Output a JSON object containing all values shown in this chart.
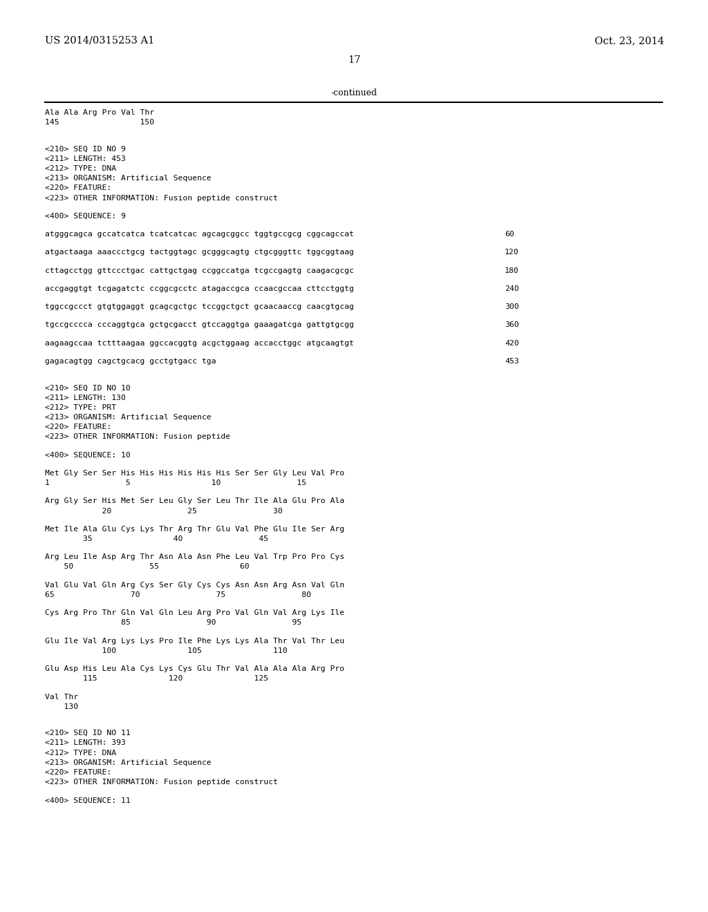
{
  "bg_color": "#ffffff",
  "header_left": "US 2014/0315253 A1",
  "header_right": "Oct. 23, 2014",
  "page_number": "17",
  "continued": "-continued",
  "content": [
    {
      "type": "seq",
      "text": "Ala Ala Arg Pro Val Thr",
      "indent": 0
    },
    {
      "type": "seq",
      "text": "145                 150",
      "indent": 0
    },
    {
      "type": "blank"
    },
    {
      "type": "blank"
    },
    {
      "type": "meta",
      "text": "<210> SEQ ID NO 9"
    },
    {
      "type": "meta",
      "text": "<211> LENGTH: 453"
    },
    {
      "type": "meta",
      "text": "<212> TYPE: DNA"
    },
    {
      "type": "meta",
      "text": "<213> ORGANISM: Artificial Sequence"
    },
    {
      "type": "meta",
      "text": "<220> FEATURE:"
    },
    {
      "type": "meta",
      "text": "<223> OTHER INFORMATION: Fusion peptide construct"
    },
    {
      "type": "blank"
    },
    {
      "type": "meta",
      "text": "<400> SEQUENCE: 9"
    },
    {
      "type": "blank"
    },
    {
      "type": "dna",
      "text": "atgggcagca gccatcatca tcatcatcac agcagcggcc tggtgccgcg cggcagccat",
      "num": "60"
    },
    {
      "type": "blank"
    },
    {
      "type": "dna",
      "text": "atgactaaga aaaccctgcg tactggtagc gcgggcagtg ctgcgggttc tggcggtaag",
      "num": "120"
    },
    {
      "type": "blank"
    },
    {
      "type": "dna",
      "text": "cttagcctgg gttccctgac cattgctgag ccggccatga tcgccgagtg caagacgcgc",
      "num": "180"
    },
    {
      "type": "blank"
    },
    {
      "type": "dna",
      "text": "accgaggtgt tcgagatctc ccggcgcctc atagaccgca ccaacgccaa cttcctggtg",
      "num": "240"
    },
    {
      "type": "blank"
    },
    {
      "type": "dna",
      "text": "tggccgccct gtgtggaggt gcagcgctgc tccggctgct gcaacaaccg caacgtgcag",
      "num": "300"
    },
    {
      "type": "blank"
    },
    {
      "type": "dna",
      "text": "tgccgcccca cccaggtgca gctgcgacct gtccaggtga gaaagatcga gattgtgcgg",
      "num": "360"
    },
    {
      "type": "blank"
    },
    {
      "type": "dna",
      "text": "aagaagccaa tctttaagaa ggccacggtg acgctggaag accacctggc atgcaagtgt",
      "num": "420"
    },
    {
      "type": "blank"
    },
    {
      "type": "dna",
      "text": "gagacagtgg cagctgcacg gcctgtgacc tga",
      "num": "453"
    },
    {
      "type": "blank"
    },
    {
      "type": "blank"
    },
    {
      "type": "meta",
      "text": "<210> SEQ ID NO 10"
    },
    {
      "type": "meta",
      "text": "<211> LENGTH: 130"
    },
    {
      "type": "meta",
      "text": "<212> TYPE: PRT"
    },
    {
      "type": "meta",
      "text": "<213> ORGANISM: Artificial Sequence"
    },
    {
      "type": "meta",
      "text": "<220> FEATURE:"
    },
    {
      "type": "meta",
      "text": "<223> OTHER INFORMATION: Fusion peptide"
    },
    {
      "type": "blank"
    },
    {
      "type": "meta",
      "text": "<400> SEQUENCE: 10"
    },
    {
      "type": "blank"
    },
    {
      "type": "prt",
      "text": "Met Gly Ser Ser His His His His His His Ser Ser Gly Leu Val Pro"
    },
    {
      "type": "prt_num",
      "text": "1                5                 10                15"
    },
    {
      "type": "blank"
    },
    {
      "type": "prt",
      "text": "Arg Gly Ser His Met Ser Leu Gly Ser Leu Thr Ile Ala Glu Pro Ala"
    },
    {
      "type": "prt_num",
      "text": "            20                25                30"
    },
    {
      "type": "blank"
    },
    {
      "type": "prt",
      "text": "Met Ile Ala Glu Cys Lys Thr Arg Thr Glu Val Phe Glu Ile Ser Arg"
    },
    {
      "type": "prt_num",
      "text": "        35                 40                45"
    },
    {
      "type": "blank"
    },
    {
      "type": "prt",
      "text": "Arg Leu Ile Asp Arg Thr Asn Ala Asn Phe Leu Val Trp Pro Pro Cys"
    },
    {
      "type": "prt_num",
      "text": "    50                55                 60"
    },
    {
      "type": "blank"
    },
    {
      "type": "prt",
      "text": "Val Glu Val Gln Arg Cys Ser Gly Cys Cys Asn Asn Arg Asn Val Gln"
    },
    {
      "type": "prt_num",
      "text": "65                70                75                80"
    },
    {
      "type": "blank"
    },
    {
      "type": "prt",
      "text": "Cys Arg Pro Thr Gln Val Gln Leu Arg Pro Val Gln Val Arg Lys Ile"
    },
    {
      "type": "prt_num",
      "text": "                85                90                95"
    },
    {
      "type": "blank"
    },
    {
      "type": "prt",
      "text": "Glu Ile Val Arg Lys Lys Pro Ile Phe Lys Lys Ala Thr Val Thr Leu"
    },
    {
      "type": "prt_num",
      "text": "            100               105               110"
    },
    {
      "type": "blank"
    },
    {
      "type": "prt",
      "text": "Glu Asp His Leu Ala Cys Lys Cys Glu Thr Val Ala Ala Ala Arg Pro"
    },
    {
      "type": "prt_num",
      "text": "        115               120               125"
    },
    {
      "type": "blank"
    },
    {
      "type": "prt",
      "text": "Val Thr"
    },
    {
      "type": "prt_num",
      "text": "    130"
    },
    {
      "type": "blank"
    },
    {
      "type": "blank"
    },
    {
      "type": "meta",
      "text": "<210> SEQ ID NO 11"
    },
    {
      "type": "meta",
      "text": "<211> LENGTH: 393"
    },
    {
      "type": "meta",
      "text": "<212> TYPE: DNA"
    },
    {
      "type": "meta",
      "text": "<213> ORGANISM: Artificial Sequence"
    },
    {
      "type": "meta",
      "text": "<220> FEATURE:"
    },
    {
      "type": "meta",
      "text": "<223> OTHER INFORMATION: Fusion peptide construct"
    },
    {
      "type": "blank"
    },
    {
      "type": "meta",
      "text": "<400> SEQUENCE: 11"
    }
  ]
}
